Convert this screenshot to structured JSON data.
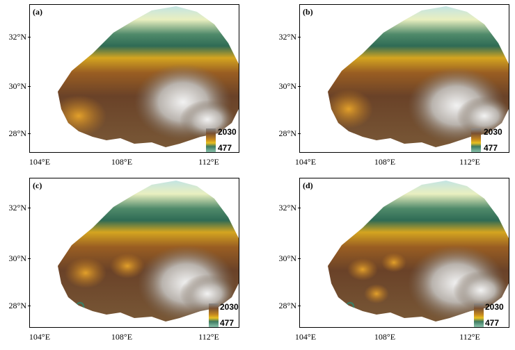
{
  "panels": [
    {
      "label": "(a)"
    },
    {
      "label": "(b)"
    },
    {
      "label": "(c)"
    },
    {
      "label": "(d)"
    }
  ],
  "axes": {
    "lat_ticks": [
      "32°N",
      "30°N",
      "28°N"
    ],
    "lon_ticks": [
      "104°E",
      "108°E",
      "112°E"
    ]
  },
  "legend": {
    "max": "2030",
    "min": "477"
  },
  "colors": {
    "high": "#8a8a8a",
    "mid_high": "#7a5030",
    "mid": "#c78a1e",
    "mid_low": "#3e7a60",
    "low": "#9ed7c0"
  }
}
